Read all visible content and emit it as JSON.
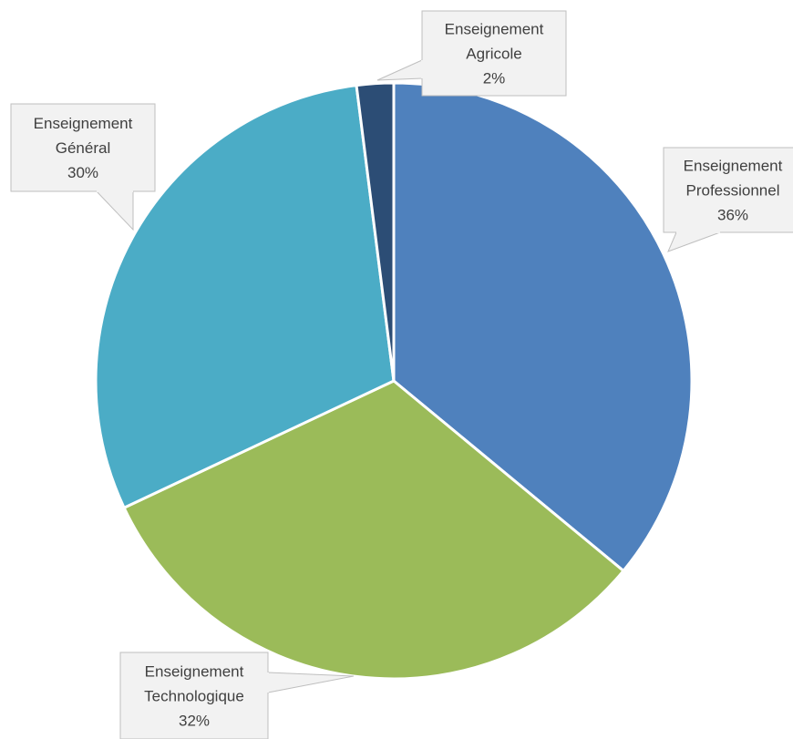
{
  "chart_data": {
    "type": "pie",
    "title": "",
    "slices": [
      {
        "label_lines": [
          "Enseignement",
          "Professionnel"
        ],
        "percent_label": "36%",
        "value": 36,
        "color": "#4f81bd"
      },
      {
        "label_lines": [
          "Enseignement",
          "Technologique"
        ],
        "percent_label": "32%",
        "value": 32,
        "color": "#9bbb59"
      },
      {
        "label_lines": [
          "Enseignement",
          "Général"
        ],
        "percent_label": "30%",
        "value": 30,
        "color": "#4bacc6"
      },
      {
        "label_lines": [
          "Enseignement",
          "Agricole"
        ],
        "percent_label": "2%",
        "value": 2,
        "color": "#2c4d75"
      }
    ],
    "legend": "none",
    "labels": "callouts"
  }
}
